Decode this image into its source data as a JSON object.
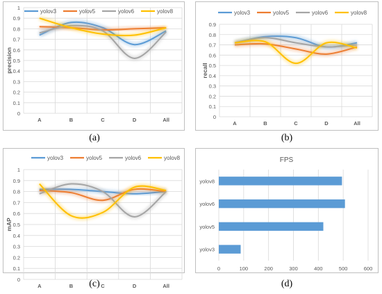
{
  "captions": {
    "a": "(a)",
    "b": "(b)",
    "c": "(c)",
    "d": "(d)"
  },
  "chart_data": [
    {
      "type": "line",
      "title": "",
      "ylabel": "precision",
      "xlabel": "",
      "categories": [
        "A",
        "B",
        "C",
        "D",
        "All"
      ],
      "ylim": [
        0,
        1
      ],
      "yticks": [
        "0",
        "0.1",
        "0.2",
        "0.3",
        "0.4",
        "0.5",
        "0.6",
        "0.7",
        "0.8",
        "0.9",
        "1"
      ],
      "grid": true,
      "legend": "top",
      "series": [
        {
          "name": "yolov3",
          "color": "#5b9bd5",
          "values": [
            0.74,
            0.86,
            0.81,
            0.65,
            0.78
          ]
        },
        {
          "name": "yolov5",
          "color": "#ed7d31",
          "values": [
            0.82,
            0.81,
            0.79,
            0.8,
            0.81
          ]
        },
        {
          "name": "yolov6",
          "color": "#a5a5a5",
          "values": [
            0.76,
            0.83,
            0.78,
            0.52,
            0.77
          ]
        },
        {
          "name": "yolov8",
          "color": "#ffc000",
          "values": [
            0.9,
            0.81,
            0.75,
            0.74,
            0.81
          ]
        }
      ]
    },
    {
      "type": "line",
      "title": "",
      "ylabel": "recall",
      "xlabel": "",
      "categories": [
        "A",
        "B",
        "C",
        "D",
        "All"
      ],
      "ylim": [
        0,
        0.9
      ],
      "yticks": [
        "0",
        "0.1",
        "0.2",
        "0.3",
        "0.4",
        "0.5",
        "0.6",
        "0.7",
        "0.8",
        "0.9"
      ],
      "grid": true,
      "legend": "top",
      "series": [
        {
          "name": "yolov3",
          "color": "#5b9bd5",
          "values": [
            0.72,
            0.78,
            0.77,
            0.68,
            0.72
          ]
        },
        {
          "name": "yolov5",
          "color": "#ed7d31",
          "values": [
            0.7,
            0.71,
            0.66,
            0.61,
            0.68
          ]
        },
        {
          "name": "yolov6",
          "color": "#a5a5a5",
          "values": [
            0.72,
            0.77,
            0.72,
            0.68,
            0.7
          ]
        },
        {
          "name": "yolov8",
          "color": "#ffc000",
          "values": [
            0.72,
            0.73,
            0.52,
            0.72,
            0.67
          ]
        }
      ]
    },
    {
      "type": "line",
      "title": "",
      "ylabel": "mAP",
      "xlabel": "",
      "categories": [
        "A",
        "B",
        "C",
        "D",
        "All"
      ],
      "ylim": [
        0,
        1
      ],
      "yticks": [
        "0",
        "0.1",
        "0.2",
        "0.3",
        "0.4",
        "0.5",
        "0.6",
        "0.7",
        "0.8",
        "0.9",
        "1"
      ],
      "grid": true,
      "legend": "top",
      "series": [
        {
          "name": "yolov3",
          "color": "#5b9bd5",
          "values": [
            0.82,
            0.82,
            0.8,
            0.78,
            0.8
          ]
        },
        {
          "name": "yolov5",
          "color": "#ed7d31",
          "values": [
            0.81,
            0.79,
            0.72,
            0.82,
            0.8
          ]
        },
        {
          "name": "yolov6",
          "color": "#a5a5a5",
          "values": [
            0.78,
            0.87,
            0.8,
            0.57,
            0.8
          ]
        },
        {
          "name": "yolov8",
          "color": "#ffc000",
          "values": [
            0.87,
            0.58,
            0.61,
            0.84,
            0.81
          ]
        }
      ]
    },
    {
      "type": "bar",
      "orientation": "horizontal",
      "title": "FPS",
      "xlabel": "",
      "ylabel": "",
      "categories": [
        "yolov3",
        "yolov5",
        "yolov6",
        "yolov8"
      ],
      "values": [
        88,
        420,
        507,
        495
      ],
      "xlim": [
        0,
        600
      ],
      "xticks": [
        "0",
        "100",
        "200",
        "300",
        "400",
        "500",
        "600"
      ],
      "color": "#5b9bd5",
      "grid": true
    }
  ]
}
